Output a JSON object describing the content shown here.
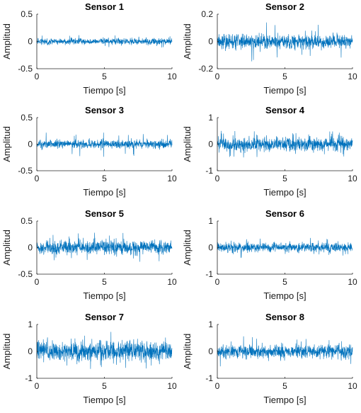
{
  "chart_data": [
    {
      "type": "line",
      "title": "Sensor 1",
      "xlabel": "Tiempo [s]",
      "ylabel": "Amplitud",
      "xlim": [
        0,
        10
      ],
      "ylim": [
        -0.5,
        0.5
      ],
      "xticks": [
        "0",
        "5",
        "10"
      ],
      "yticks": [
        "-0.5",
        "0",
        "0.5"
      ],
      "grid": false,
      "color": "#0072BD",
      "noise_amplitude": 0.03,
      "peak_amplitude": 0.12,
      "samples": 1000
    },
    {
      "type": "line",
      "title": "Sensor 2",
      "xlabel": "Tiempo [s]",
      "ylabel": "Amplitud",
      "xlim": [
        0,
        10
      ],
      "ylim": [
        -0.2,
        0.2
      ],
      "xticks": [
        "0",
        "5",
        "10"
      ],
      "yticks": [
        "-0.2",
        "0",
        "0.2"
      ],
      "grid": false,
      "color": "#0072BD",
      "noise_amplitude": 0.03,
      "peak_amplitude": 0.15,
      "samples": 1000
    },
    {
      "type": "line",
      "title": "Sensor 3",
      "xlabel": "Tiempo [s]",
      "ylabel": "Amplitud",
      "xlim": [
        0,
        10
      ],
      "ylim": [
        -0.5,
        0.5
      ],
      "xticks": [
        "0",
        "5",
        "10"
      ],
      "yticks": [
        "-0.5",
        "0",
        "0.5"
      ],
      "grid": false,
      "color": "#0072BD",
      "noise_amplitude": 0.045,
      "peak_amplitude": 0.25,
      "samples": 1000
    },
    {
      "type": "line",
      "title": "Sensor 4",
      "xlabel": "Tiempo [s]",
      "ylabel": "Amplitud",
      "xlim": [
        0,
        10
      ],
      "ylim": [
        -1,
        1
      ],
      "xticks": [
        "0",
        "5",
        "10"
      ],
      "yticks": [
        "-1",
        "0",
        "1"
      ],
      "grid": false,
      "color": "#0072BD",
      "noise_amplitude": 0.14,
      "peak_amplitude": 0.5,
      "samples": 1000
    },
    {
      "type": "line",
      "title": "Sensor 5",
      "xlabel": "Tiempo [s]",
      "ylabel": "Amplitud",
      "xlim": [
        0,
        10
      ],
      "ylim": [
        -0.5,
        0.5
      ],
      "xticks": [
        "0",
        "5",
        "10"
      ],
      "yticks": [
        "-0.5",
        "0",
        "0.5"
      ],
      "grid": false,
      "color": "#0072BD",
      "noise_amplitude": 0.07,
      "peak_amplitude": 0.28,
      "samples": 1000
    },
    {
      "type": "line",
      "title": "Sensor 6",
      "xlabel": "Tiempo [s]",
      "ylabel": "Amplitud",
      "xlim": [
        0,
        10
      ],
      "ylim": [
        -1,
        1
      ],
      "xticks": [
        "0",
        "5",
        "10"
      ],
      "yticks": [
        "-1",
        "0",
        "1"
      ],
      "grid": false,
      "color": "#0072BD",
      "noise_amplitude": 0.1,
      "peak_amplitude": 0.4,
      "samples": 1000
    },
    {
      "type": "line",
      "title": "Sensor 7",
      "xlabel": "Tiempo [s]",
      "ylabel": "Amplitud",
      "xlim": [
        0,
        10
      ],
      "ylim": [
        -1,
        1
      ],
      "xticks": [
        "0",
        "5",
        "10"
      ],
      "yticks": [
        "-1",
        "0",
        "1"
      ],
      "grid": false,
      "color": "#0072BD",
      "noise_amplitude": 0.2,
      "peak_amplitude": 0.75,
      "samples": 1000
    },
    {
      "type": "line",
      "title": "Sensor 8",
      "xlabel": "Tiempo [s]",
      "ylabel": "Amplitud",
      "xlim": [
        0,
        10
      ],
      "ylim": [
        -1,
        1
      ],
      "xticks": [
        "0",
        "5",
        "10"
      ],
      "yticks": [
        "-1",
        "0",
        "1"
      ],
      "grid": false,
      "color": "#0072BD",
      "noise_amplitude": 0.14,
      "peak_amplitude": 0.6,
      "samples": 1000
    }
  ]
}
